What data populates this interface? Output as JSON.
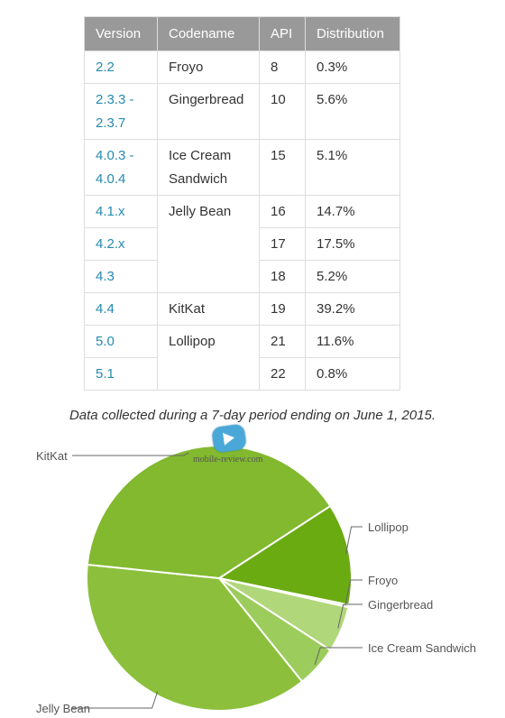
{
  "table": {
    "headers": [
      "Version",
      "Codename",
      "API",
      "Distribution"
    ],
    "rows": [
      {
        "version": "2.2",
        "codename": "Froyo",
        "api": "8",
        "distribution": "0.3%"
      },
      {
        "version": "2.3.3 - 2.3.7",
        "codename": "Gingerbread",
        "api": "10",
        "distribution": "5.6%"
      },
      {
        "version": "4.0.3 - 4.0.4",
        "codename": "Ice Cream Sandwich",
        "api": "15",
        "distribution": "5.1%"
      },
      {
        "version": "4.1.x",
        "codename": "Jelly Bean",
        "api": "16",
        "distribution": "14.7%"
      },
      {
        "version": "4.2.x",
        "codename": "",
        "api": "17",
        "distribution": "17.5%"
      },
      {
        "version": "4.3",
        "codename": "",
        "api": "18",
        "distribution": "5.2%"
      },
      {
        "version": "4.4",
        "codename": "KitKat",
        "api": "19",
        "distribution": "39.2%"
      },
      {
        "version": "5.0",
        "codename": "Lollipop",
        "api": "21",
        "distribution": "11.6%"
      },
      {
        "version": "5.1",
        "codename": "",
        "api": "22",
        "distribution": "0.8%"
      }
    ]
  },
  "caption": "Data collected during a 7-day period ending on June 1, 2015.",
  "watermark": "mobile-review.com",
  "colors": {
    "header_bg": "#999999",
    "link": "#258aaf"
  },
  "chart_data": {
    "type": "pie",
    "slices": [
      {
        "label": "Lollipop",
        "value": 12.4,
        "color": "#6aab12"
      },
      {
        "label": "Froyo",
        "value": 0.3,
        "color": "#d7ecb7"
      },
      {
        "label": "Gingerbread",
        "value": 5.6,
        "color": "#b0d77a"
      },
      {
        "label": "Ice Cream Sandwich",
        "value": 5.1,
        "color": "#9ccc5c"
      },
      {
        "label": "Jelly Bean",
        "value": 37.4,
        "color": "#8cc03c"
      },
      {
        "label": "KitKat",
        "value": 39.2,
        "color": "#82b92e"
      }
    ],
    "legend": "none",
    "labels_placement": "callout lines"
  }
}
